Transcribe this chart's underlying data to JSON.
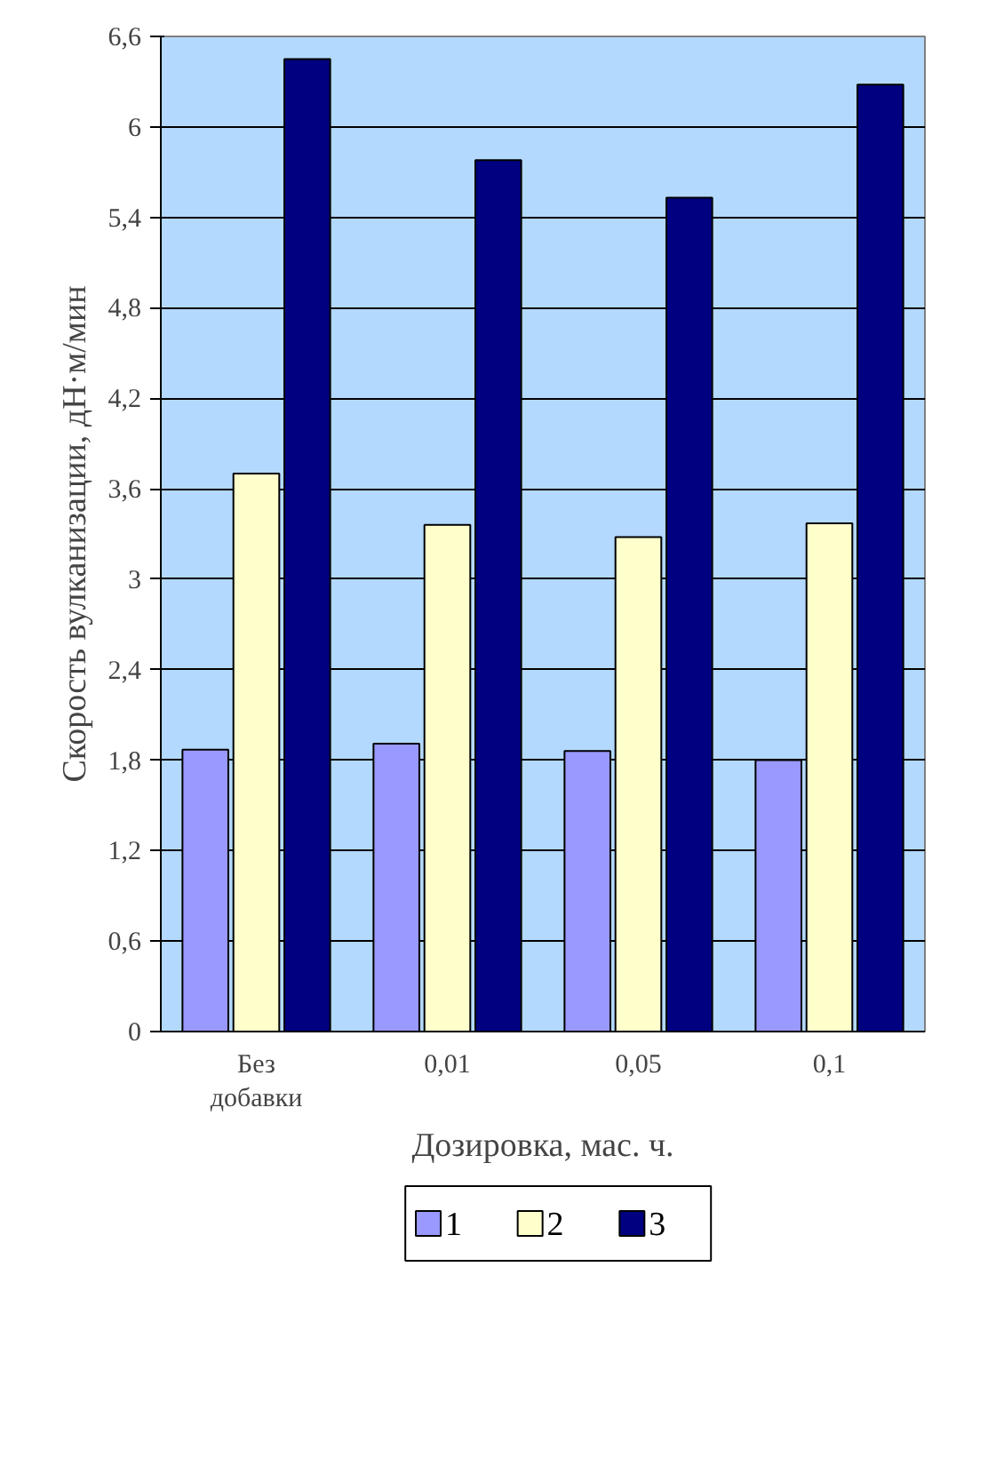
{
  "chart_data": {
    "type": "bar",
    "xlabel": "Дозировка, мас. ч.",
    "ylabel": "Скорость вулканизации, дН·м/мин",
    "categories": [
      "Без добавки",
      "0,01",
      "0,05",
      "0,1"
    ],
    "series": [
      {
        "name": "1",
        "color": "#9999ff",
        "values": [
          1.87,
          1.91,
          1.86,
          1.8
        ]
      },
      {
        "name": "2",
        "color": "#ffffcc",
        "values": [
          3.7,
          3.36,
          3.28,
          3.37
        ]
      },
      {
        "name": "3",
        "color": "#000080",
        "values": [
          6.45,
          5.78,
          5.53,
          6.28
        ]
      }
    ],
    "ylim": [
      0,
      6.6
    ],
    "yticks": [
      0,
      {
        "value": 0.6,
        "label": "0,6"
      },
      {
        "value": 1.2,
        "label": "1,2"
      },
      {
        "value": 1.8,
        "label": "1,8"
      },
      {
        "value": 2.4,
        "label": "2,4"
      },
      3,
      {
        "value": 3.6,
        "label": "3,6"
      },
      {
        "value": 4.2,
        "label": "4,2"
      },
      {
        "value": 4.8,
        "label": "4,8"
      },
      {
        "value": 5.4,
        "label": "5,4"
      },
      6,
      {
        "value": 6.6,
        "label": "6,6"
      }
    ],
    "grid": "y",
    "legend": "bottom"
  }
}
